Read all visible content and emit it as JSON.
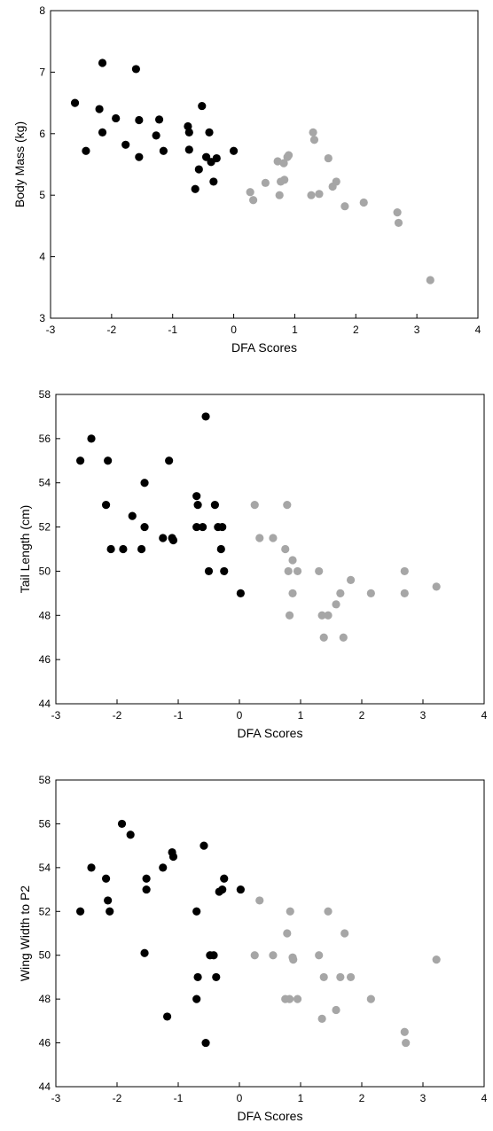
{
  "colors": {
    "group_a": "#000000",
    "group_b": "#a6a6a6"
  },
  "chart_data": [
    {
      "type": "scatter",
      "xlabel": "DFA Scores",
      "ylabel": "Body Mass (kg)",
      "xlim": [
        -3,
        4
      ],
      "ylim": [
        3,
        8
      ],
      "xticks": [
        "-3",
        "-2",
        "-1",
        "0",
        "1",
        "2",
        "3",
        "4"
      ],
      "yticks": [
        "3",
        "4",
        "5",
        "6",
        "7",
        "8"
      ],
      "grid": false,
      "series": [
        {
          "color": "#000000",
          "points": [
            [
              -2.6,
              6.5
            ],
            [
              -2.42,
              5.72
            ],
            [
              -2.2,
              6.4
            ],
            [
              -2.15,
              7.15
            ],
            [
              -2.15,
              6.02
            ],
            [
              -1.93,
              6.25
            ],
            [
              -1.77,
              5.82
            ],
            [
              -1.6,
              7.05
            ],
            [
              -1.55,
              6.22
            ],
            [
              -1.55,
              5.62
            ],
            [
              -1.27,
              5.97
            ],
            [
              -1.22,
              6.23
            ],
            [
              -1.15,
              5.72
            ],
            [
              -0.75,
              6.12
            ],
            [
              -0.73,
              6.02
            ],
            [
              -0.73,
              5.74
            ],
            [
              -0.63,
              5.1
            ],
            [
              -0.57,
              5.42
            ],
            [
              -0.52,
              6.45
            ],
            [
              -0.45,
              5.62
            ],
            [
              -0.4,
              6.02
            ],
            [
              -0.37,
              5.54
            ],
            [
              -0.33,
              5.22
            ],
            [
              -0.28,
              5.6
            ],
            [
              0.0,
              5.72
            ]
          ]
        },
        {
          "color": "#a6a6a6",
          "points": [
            [
              0.27,
              5.05
            ],
            [
              0.32,
              4.92
            ],
            [
              0.52,
              5.2
            ],
            [
              0.72,
              5.55
            ],
            [
              0.75,
              5.0
            ],
            [
              0.77,
              5.22
            ],
            [
              0.82,
              5.52
            ],
            [
              0.83,
              5.25
            ],
            [
              0.88,
              5.62
            ],
            [
              0.9,
              5.65
            ],
            [
              1.27,
              5.0
            ],
            [
              1.3,
              6.02
            ],
            [
              1.32,
              5.9
            ],
            [
              1.4,
              5.02
            ],
            [
              1.55,
              5.6
            ],
            [
              1.62,
              5.14
            ],
            [
              1.68,
              5.22
            ],
            [
              1.82,
              4.82
            ],
            [
              2.13,
              4.88
            ],
            [
              2.68,
              4.72
            ],
            [
              2.7,
              4.55
            ],
            [
              3.22,
              3.62
            ]
          ]
        }
      ]
    },
    {
      "type": "scatter",
      "xlabel": "DFA Scores",
      "ylabel": "Tail Length (cm)",
      "xlim": [
        -3,
        4
      ],
      "ylim": [
        44,
        58
      ],
      "xticks": [
        "-3",
        "-2",
        "-1",
        "0",
        "1",
        "2",
        "3",
        "4"
      ],
      "yticks": [
        "44",
        "46",
        "48",
        "50",
        "52",
        "54",
        "56",
        "58"
      ],
      "grid": false,
      "series": [
        {
          "color": "#000000",
          "points": [
            [
              -2.6,
              55.0
            ],
            [
              -2.42,
              56.0
            ],
            [
              -2.18,
              53.0
            ],
            [
              -2.15,
              55.0
            ],
            [
              -2.1,
              51.0
            ],
            [
              -1.9,
              51.0
            ],
            [
              -1.75,
              52.5
            ],
            [
              -1.6,
              51.0
            ],
            [
              -1.55,
              54.0
            ],
            [
              -1.55,
              52.0
            ],
            [
              -1.25,
              51.5
            ],
            [
              -1.15,
              55.0
            ],
            [
              -1.1,
              51.5
            ],
            [
              -1.08,
              51.4
            ],
            [
              -0.7,
              53.4
            ],
            [
              -0.7,
              52.0
            ],
            [
              -0.68,
              53.0
            ],
            [
              -0.6,
              52.0
            ],
            [
              -0.55,
              57.0
            ],
            [
              -0.5,
              50.0
            ],
            [
              -0.4,
              53.0
            ],
            [
              -0.35,
              52.0
            ],
            [
              -0.3,
              51.0
            ],
            [
              -0.28,
              52.0
            ],
            [
              -0.25,
              50.0
            ],
            [
              0.02,
              49.0
            ]
          ]
        },
        {
          "color": "#a6a6a6",
          "points": [
            [
              0.25,
              53.0
            ],
            [
              0.33,
              51.5
            ],
            [
              0.55,
              51.5
            ],
            [
              0.75,
              51.0
            ],
            [
              0.78,
              53.0
            ],
            [
              0.8,
              50.0
            ],
            [
              0.82,
              48.0
            ],
            [
              0.87,
              50.5
            ],
            [
              0.87,
              49.0
            ],
            [
              0.95,
              50.0
            ],
            [
              1.3,
              50.0
            ],
            [
              1.35,
              48.0
            ],
            [
              1.38,
              47.0
            ],
            [
              1.45,
              48.0
            ],
            [
              1.58,
              48.5
            ],
            [
              1.65,
              49.0
            ],
            [
              1.7,
              47.0
            ],
            [
              1.82,
              49.6
            ],
            [
              2.15,
              49.0
            ],
            [
              2.7,
              50.0
            ],
            [
              2.7,
              49.0
            ],
            [
              3.22,
              49.3
            ]
          ]
        }
      ]
    },
    {
      "type": "scatter",
      "xlabel": "DFA Scores",
      "ylabel": "Wing Width to P2",
      "xlim": [
        -3,
        4
      ],
      "ylim": [
        44,
        58
      ],
      "xticks": [
        "-3",
        "-2",
        "-1",
        "0",
        "1",
        "2",
        "3",
        "4"
      ],
      "yticks": [
        "44",
        "46",
        "48",
        "50",
        "52",
        "54",
        "56",
        "58"
      ],
      "grid": false,
      "series": [
        {
          "color": "#000000",
          "points": [
            [
              -2.6,
              52.0
            ],
            [
              -2.42,
              54.0
            ],
            [
              -2.18,
              53.5
            ],
            [
              -2.15,
              52.5
            ],
            [
              -2.12,
              52.0
            ],
            [
              -1.92,
              56.0
            ],
            [
              -1.78,
              55.5
            ],
            [
              -1.55,
              50.1
            ],
            [
              -1.52,
              53.5
            ],
            [
              -1.52,
              53.0
            ],
            [
              -1.25,
              54.0
            ],
            [
              -1.18,
              47.2
            ],
            [
              -1.1,
              54.7
            ],
            [
              -1.08,
              54.5
            ],
            [
              -0.7,
              52.0
            ],
            [
              -0.7,
              48.0
            ],
            [
              -0.68,
              49.0
            ],
            [
              -0.58,
              55.0
            ],
            [
              -0.55,
              46.0
            ],
            [
              -0.48,
              50.0
            ],
            [
              -0.42,
              50.0
            ],
            [
              -0.38,
              49.0
            ],
            [
              -0.33,
              52.9
            ],
            [
              -0.28,
              53.0
            ],
            [
              -0.25,
              53.5
            ],
            [
              0.02,
              53.0
            ]
          ]
        },
        {
          "color": "#a6a6a6",
          "points": [
            [
              0.25,
              50.0
            ],
            [
              0.33,
              52.5
            ],
            [
              0.55,
              50.0
            ],
            [
              0.75,
              48.0
            ],
            [
              0.78,
              51.0
            ],
            [
              0.82,
              48.0
            ],
            [
              0.83,
              52.0
            ],
            [
              0.87,
              49.9
            ],
            [
              0.88,
              49.8
            ],
            [
              0.95,
              48.0
            ],
            [
              1.3,
              50.0
            ],
            [
              1.35,
              47.1
            ],
            [
              1.38,
              49.0
            ],
            [
              1.45,
              52.0
            ],
            [
              1.58,
              47.5
            ],
            [
              1.65,
              49.0
            ],
            [
              1.72,
              51.0
            ],
            [
              1.82,
              49.0
            ],
            [
              2.15,
              48.0
            ],
            [
              2.7,
              46.5
            ],
            [
              2.72,
              46.0
            ],
            [
              3.22,
              49.8
            ]
          ]
        }
      ]
    }
  ]
}
